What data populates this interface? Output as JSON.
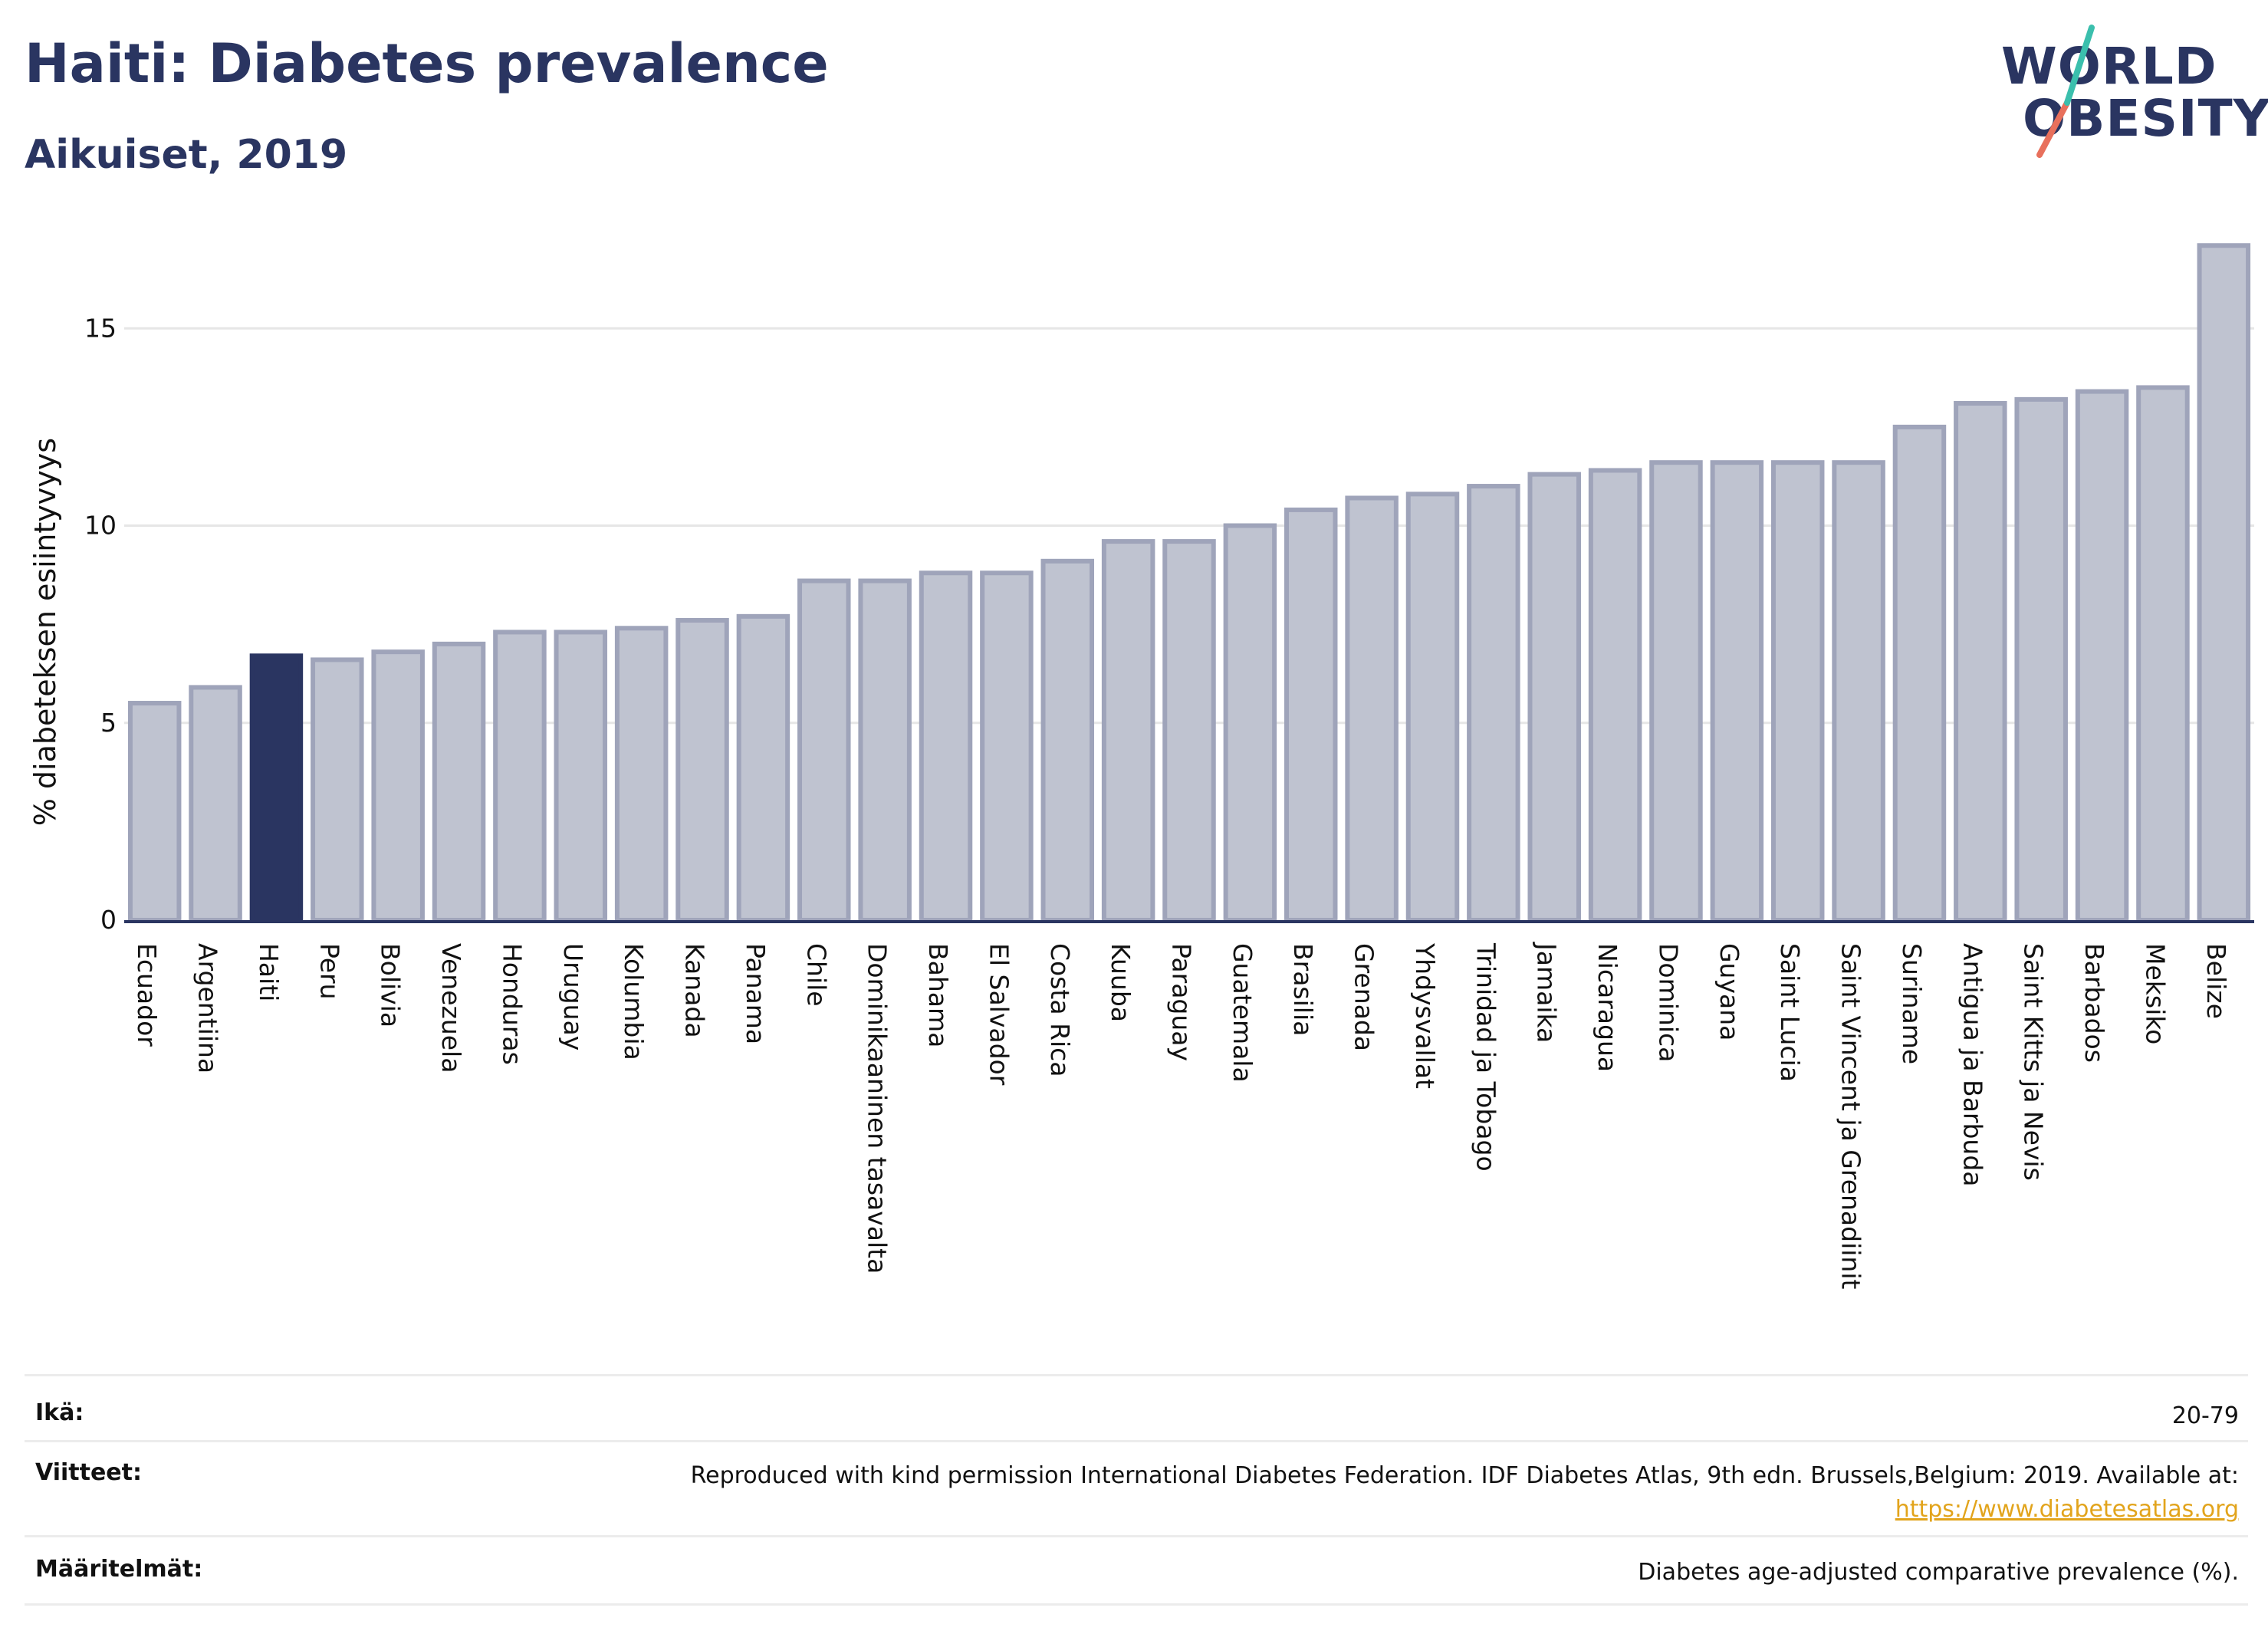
{
  "title": "Haiti: Diabetes prevalence",
  "subtitle": "Aikuiset, 2019",
  "logo": {
    "line1": "WORLD",
    "line2": "OBESITY"
  },
  "chart_data": {
    "type": "bar",
    "ylabel": "% diabeteksen esiintyvyys",
    "xlabel": "",
    "ylim": [
      0,
      17.5
    ],
    "yticks": [
      0,
      5,
      10,
      15
    ],
    "grid": true,
    "highlight": "Haiti",
    "colors": {
      "bar": "#bfc3d0",
      "bar_edge": "#9fa4ba",
      "highlight": "#2a3561",
      "grid": "#e6e6e6",
      "axis": "#2a3561"
    },
    "categories": [
      "Ecuador",
      "Argentiina",
      "Haiti",
      "Peru",
      "Bolivia",
      "Venezuela",
      "Honduras",
      "Uruguay",
      "Kolumbia",
      "Kanada",
      "Panama",
      "Chile",
      "Dominikaaninen tasavalta",
      "Bahama",
      "El Salvador",
      "Costa Rica",
      "Kuuba",
      "Paraguay",
      "Guatemala",
      "Brasilia",
      "Grenada",
      "Yhdysvallat",
      "Trinidad ja Tobago",
      "Jamaika",
      "Nicaragua",
      "Dominica",
      "Guyana",
      "Saint Lucia",
      "Saint Vincent ja Grenadiinit",
      "Suriname",
      "Antigua ja Barbuda",
      "Saint Kitts ja Nevis",
      "Barbados",
      "Meksiko",
      "Belize"
    ],
    "values": [
      5.5,
      5.9,
      6.7,
      6.6,
      6.8,
      7.0,
      7.3,
      7.3,
      7.4,
      7.6,
      7.7,
      8.6,
      8.6,
      8.8,
      8.8,
      9.1,
      9.6,
      9.6,
      10.0,
      10.4,
      10.7,
      10.8,
      11.0,
      11.3,
      11.4,
      11.6,
      11.6,
      11.6,
      11.6,
      12.5,
      13.1,
      13.2,
      13.4,
      13.5,
      17.1
    ]
  },
  "info": {
    "age_label": "Ikä:",
    "age_value": "20-79",
    "refs_label": "Viitteet:",
    "refs_text": "Reproduced with kind permission International Diabetes Federation. IDF Diabetes Atlas, 9th edn. Brussels,Belgium: 2019. Available at:",
    "refs_link": "https://www.diabetesatlas.org",
    "defs_label": "Määritelmät:",
    "defs_value": "Diabetes age-adjusted comparative prevalence (%)."
  }
}
